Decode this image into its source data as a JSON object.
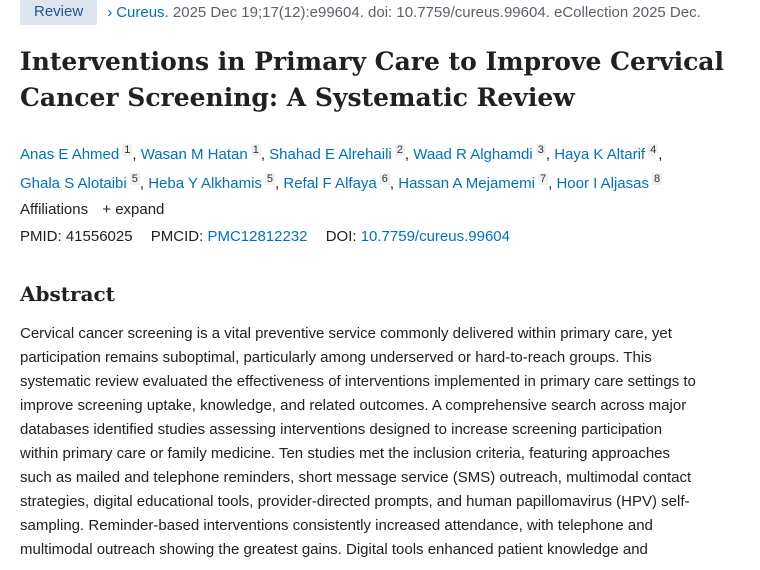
{
  "header": {
    "badge": "Review",
    "journal": "Cureus.",
    "citation": " 2025 Dec 19;17(12):e99604. doi: 10.7759/cureus.99604. eCollection 2025 Dec."
  },
  "title": "Interventions in Primary Care to Improve Cervical Cancer Screening: A Systematic Review",
  "authors": [
    {
      "name": "Anas E Ahmed",
      "aff": "1"
    },
    {
      "name": "Wasan M Hatan",
      "aff": "1"
    },
    {
      "name": "Shahad E Alrehaili",
      "aff": "2"
    },
    {
      "name": "Waad R Alghamdi",
      "aff": "3"
    },
    {
      "name": "Haya K Altarif",
      "aff": "4"
    },
    {
      "name": "Ghala S Alotaibi",
      "aff": "5"
    },
    {
      "name": "Heba Y Alkhamis",
      "aff": "5"
    },
    {
      "name": "Refal F Alfaya",
      "aff": "6"
    },
    {
      "name": "Hassan A Mejamemi",
      "aff": "7"
    },
    {
      "name": "Hoor I Aljasas",
      "aff": "8"
    }
  ],
  "affiliations": {
    "label": "Affiliations",
    "expand": "+ expand"
  },
  "ids": {
    "pmid_label": "PMID:",
    "pmid": "41556025",
    "pmcid_label": "PMCID:",
    "pmcid": "PMC12812232",
    "doi_label": "DOI:",
    "doi": "10.7759/cureus.99604"
  },
  "abstract": {
    "heading": "Abstract",
    "lines": [
      "Cervical cancer screening is a vital preventive service commonly delivered within primary care, yet",
      "participation remains suboptimal, particularly among underserved or hard-to-reach groups. This",
      "systematic review evaluated the effectiveness of interventions implemented in primary care settings to",
      "improve screening uptake, knowledge, and related outcomes. A comprehensive search across major",
      "databases identified studies assessing interventions designed to increase screening participation",
      "within primary care or family medicine. Ten studies met the inclusion criteria, featuring approaches",
      "such as mailed and telephone reminders, short message service (SMS) outreach, multimodal contact",
      "strategies, digital educational tools, provider-directed prompts, and human papillomavirus (HPV) self-",
      "sampling. Reminder-based interventions consistently increased attendance, with telephone and",
      "multimodal outreach showing the greatest gains. Digital tools enhanced patient knowledge and"
    ]
  }
}
